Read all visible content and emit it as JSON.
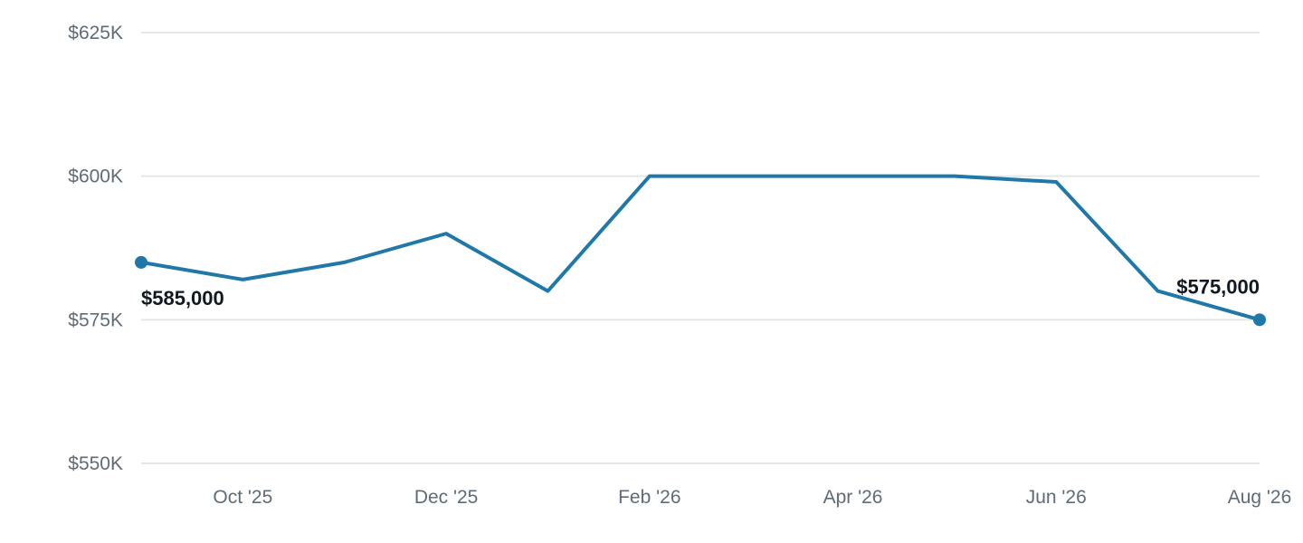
{
  "chart_data": {
    "type": "line",
    "x": [
      "2025-09",
      "2025-10",
      "2025-11",
      "2025-12",
      "2026-01",
      "2026-02",
      "2026-03",
      "2026-04",
      "2026-05",
      "2026-06",
      "2026-07",
      "2026-08"
    ],
    "series": [
      {
        "values": [
          585000,
          582000,
          585000,
          590000,
          580000,
          600000,
          600000,
          600000,
          600000,
          599000,
          580000,
          575000
        ],
        "color": "#1f78a8"
      }
    ],
    "x_tick_labels": [
      {
        "x": "2025-10",
        "label": "Oct '25"
      },
      {
        "x": "2025-12",
        "label": "Dec '25"
      },
      {
        "x": "2026-02",
        "label": "Feb '26"
      },
      {
        "x": "2026-04",
        "label": "Apr '26"
      },
      {
        "x": "2026-06",
        "label": "Jun '26"
      },
      {
        "x": "2026-08",
        "label": "Aug '26"
      }
    ],
    "y_ticks": [
      {
        "value": 625000,
        "label": "$625K"
      },
      {
        "value": 600000,
        "label": "$600K"
      },
      {
        "value": 575000,
        "label": "$575K"
      },
      {
        "value": 550000,
        "label": "$550K"
      }
    ],
    "ylim": [
      550000,
      625000
    ],
    "grid": true,
    "annotations": [
      {
        "x": "2025-09",
        "value": 585000,
        "label": "$585,000",
        "marker": true
      },
      {
        "x": "2026-08",
        "value": 575000,
        "label": "$575,000",
        "marker": true
      }
    ],
    "title": "",
    "xlabel": "",
    "ylabel": ""
  }
}
